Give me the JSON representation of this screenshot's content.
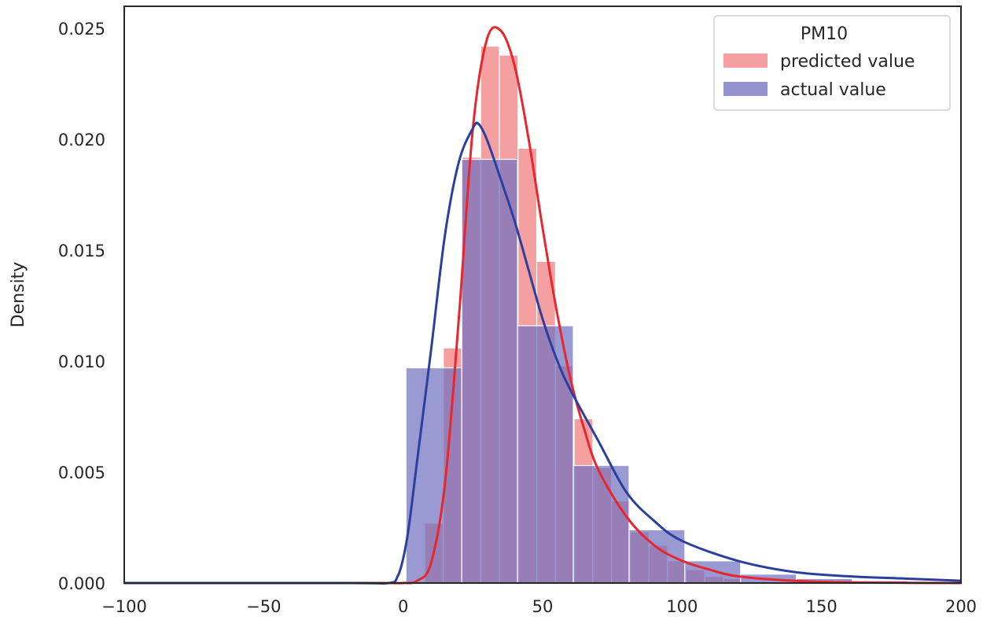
{
  "chart_data": {
    "type": "bar",
    "subtype": "histogram-with-kde",
    "title": "",
    "xlabel": "",
    "ylabel": "Density",
    "xlim": [
      -100,
      200
    ],
    "ylim": [
      0,
      0.026
    ],
    "x_ticks": [
      -100,
      -50,
      0,
      50,
      100,
      150,
      200
    ],
    "x_tick_labels": [
      "−100",
      "−50",
      "0",
      "50",
      "100",
      "150",
      "200"
    ],
    "y_ticks": [
      0,
      0.005,
      0.01,
      0.015,
      0.02,
      0.025
    ],
    "y_tick_labels": [
      "0.000",
      "0.005",
      "0.010",
      "0.015",
      "0.020",
      "0.025"
    ],
    "grid": false,
    "legend": {
      "title": "PM10",
      "placement": "top-right",
      "entries": [
        "predicted value",
        "actual value"
      ]
    },
    "series": [
      {
        "name": "predicted value",
        "color": "#f08080",
        "line_color": "#e8262d",
        "bin_width": 6.7,
        "bin_edges_start": 7.7,
        "densities": [
          0.0027,
          0.0106,
          0.0192,
          0.0242,
          0.0238,
          0.0196,
          0.0145,
          0.0098,
          0.0074,
          0.0052,
          0.0037,
          0.0023,
          0.0017,
          0.001,
          0.0006,
          0.0003,
          0.0002
        ],
        "kde": {
          "x": [
            -100,
            -20,
            -5,
            0,
            5,
            10,
            15,
            20,
            25,
            30,
            35,
            40,
            45,
            50,
            55,
            60,
            65,
            70,
            80,
            90,
            100,
            110,
            120,
            140,
            160,
            180,
            200
          ],
          "y": [
            0,
            0,
            0,
            0,
            0.0001,
            0.0009,
            0.0045,
            0.012,
            0.0205,
            0.0245,
            0.0249,
            0.0233,
            0.02,
            0.016,
            0.0123,
            0.0092,
            0.0069,
            0.0051,
            0.003,
            0.0017,
            0.001,
            0.0006,
            0.0003,
            0.0001,
            3e-05,
            1e-05,
            0
          ]
        }
      },
      {
        "name": "actual value",
        "color": "#6f6fc0",
        "line_color": "#2b3f9e",
        "bin_width": 20,
        "bin_edges_start": 1,
        "densities": [
          0.0097,
          0.0191,
          0.0116,
          0.0053,
          0.0024,
          0.001,
          0.0004,
          0.0002,
          0.0001
        ],
        "kde": {
          "x": [
            -100,
            -20,
            -5,
            -2,
            0,
            2,
            5,
            10,
            15,
            20,
            25,
            27,
            30,
            35,
            40,
            45,
            50,
            55,
            60,
            70,
            80,
            90,
            100,
            120,
            140,
            160,
            180,
            200
          ],
          "y": [
            0,
            0,
            0,
            0.0003,
            0.0011,
            0.0025,
            0.0055,
            0.0105,
            0.0157,
            0.019,
            0.0205,
            0.0207,
            0.02,
            0.0182,
            0.0163,
            0.0141,
            0.0119,
            0.0101,
            0.0087,
            0.0064,
            0.0041,
            0.0028,
            0.0019,
            0.001,
            0.0005,
            0.0003,
            0.0002,
            0.0001
          ]
        }
      }
    ]
  }
}
